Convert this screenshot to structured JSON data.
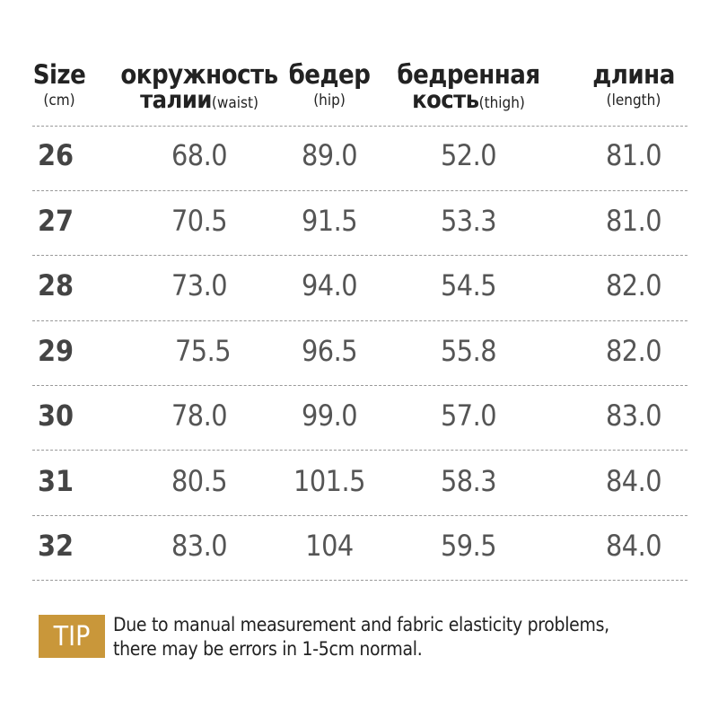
{
  "headers": [
    {
      "line1": "Size",
      "line2_bold": "",
      "line2": "(cm)"
    },
    {
      "line1": "окружность",
      "line2_bold": "талии",
      "line2": "(waist)"
    },
    {
      "line1": "бедер",
      "line2_bold": "",
      "line2": "(hip)"
    },
    {
      "line1": "бедренная",
      "line2_bold": "кость",
      "line2": "(thigh)"
    },
    {
      "line1": "длина",
      "line2_bold": "",
      "line2": "(length)"
    }
  ],
  "rows": [
    [
      "26",
      "68.0",
      "89.0",
      "52.0",
      "81.0"
    ],
    [
      "27",
      "70.5",
      "91.5",
      "53.3",
      "81.0"
    ],
    [
      "28",
      "73.0",
      "94.0",
      "54.5",
      "82.0"
    ],
    [
      "29",
      "75.5",
      "96.5",
      "55.8",
      "82.0"
    ],
    [
      "30",
      "78.0",
      "99.0",
      "57.0",
      "83.0"
    ],
    [
      "31",
      "80.5",
      "101.5",
      "58.3",
      "84.0"
    ],
    [
      "32",
      "83.0",
      "104",
      "59.5",
      "84.0"
    ]
  ],
  "tip": {
    "label": "TIP",
    "line1": "Due to manual measurement and fabric elasticity problems,",
    "line2": "there may be errors in 1-5cm normal.",
    "color": "#C9973A"
  }
}
